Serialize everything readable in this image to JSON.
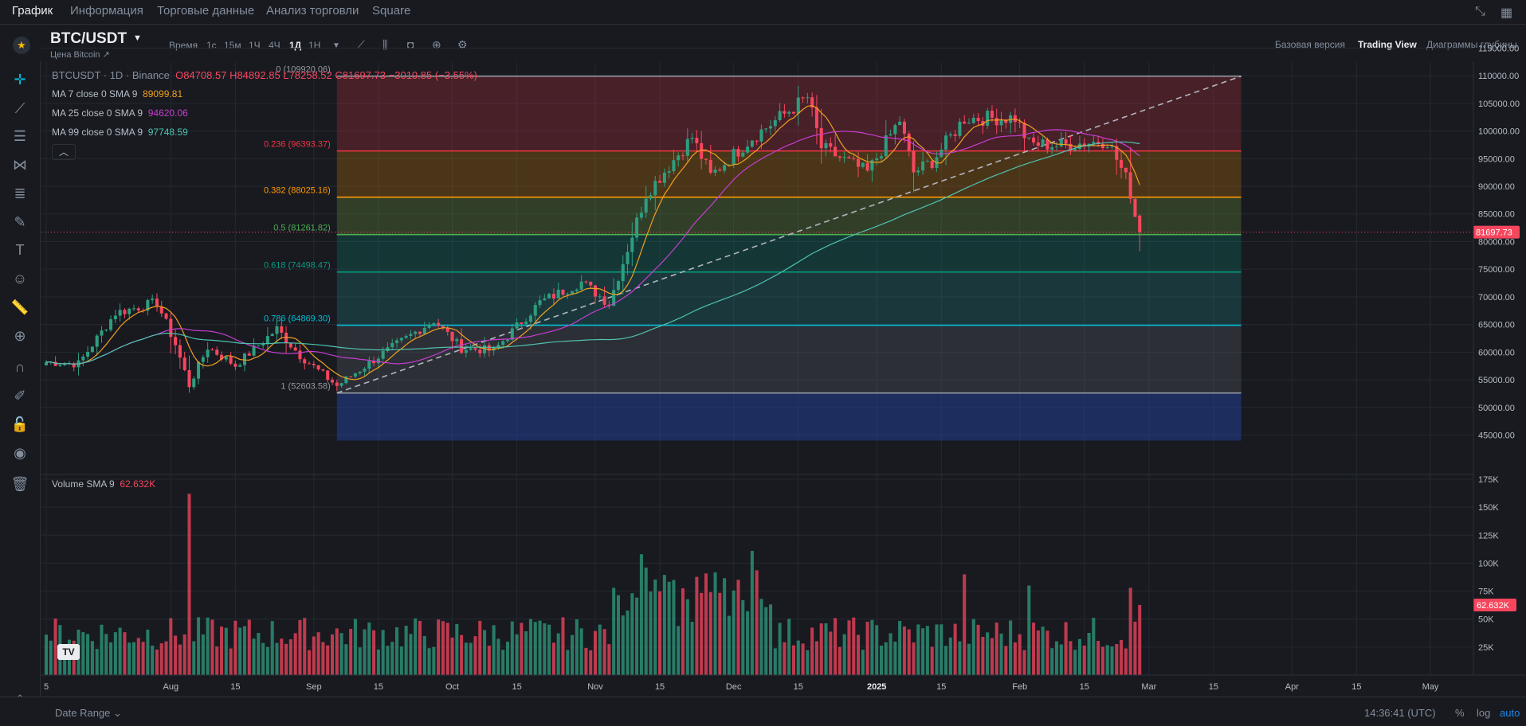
{
  "nav": {
    "tabs": [
      "График",
      "Информация",
      "Торговые данные",
      "Анализ торговли",
      "Square"
    ],
    "active_index": 0
  },
  "symbol": {
    "name": "BTC/USDT",
    "subtitle": "Цена Bitcoin ↗"
  },
  "toolbar": {
    "time_label": "Время",
    "intervals": [
      "1с",
      "15м",
      "1Ч",
      "4Ч",
      "1Д",
      "1Н"
    ],
    "active_interval": "1Д",
    "views": [
      "Базовая версия",
      "Trading View",
      "Диаграммы глубины"
    ],
    "active_view": "Trading View"
  },
  "legend": {
    "title": "BTCUSDT · 1D · Binance",
    "open": "O84708.57",
    "high": "H84892.85",
    "low": "L78258.52",
    "close": "C81697.73",
    "change": "−3010.85 (−3.55%)",
    "ma7_label": "MA 7 close 0 SMA 9",
    "ma7_value": "89099.81",
    "ma25_label": "MA 25 close 0 SMA 9",
    "ma25_value": "94620.06",
    "ma99_label": "MA 99 close 0 SMA 9",
    "ma99_value": "97748.59",
    "volume_label": "Volume SMA 9",
    "volume_value": "62.632K"
  },
  "footer": {
    "date_range": "Date Range ⌄",
    "clock": "14:36:41 (UTC)",
    "options": [
      "%",
      "log",
      "auto"
    ]
  },
  "colors": {
    "up": "#2e9d7f",
    "down": "#f6465d",
    "ma7": "#f0a020",
    "ma25": "#c73dd1",
    "ma99": "#4fc3b0",
    "accent": "#00b8d9"
  },
  "chart_data": {
    "type": "candlestick",
    "symbol": "BTCUSDT",
    "interval": "1D",
    "price_axis": {
      "ylim": [
        43000,
        116000
      ],
      "ticks": [
        45000,
        50000,
        55000,
        60000,
        65000,
        70000,
        75000,
        80000,
        85000,
        90000,
        95000,
        100000,
        105000,
        110000,
        115000
      ],
      "tick_labels": [
        "45000.00",
        "50000.00",
        "55000.00",
        "60000.00",
        "65000.00",
        "70000.00",
        "75000.00",
        "80000.00",
        "85000.00",
        "90000.00",
        "95000.00",
        "100000.00",
        "105000.00",
        "110000.00",
        "115000.00"
      ],
      "last_price": 81697.73,
      "last_price_label": "81697.73"
    },
    "volume_axis": {
      "ylim": [
        0,
        175000
      ],
      "ticks": [
        25000,
        50000,
        75000,
        100000,
        125000,
        150000,
        175000
      ],
      "tick_labels": [
        "25K",
        "50K",
        "75K",
        "100K",
        "125K",
        "150K",
        "175K"
      ],
      "last_value_label": "62.632K"
    },
    "time_axis": {
      "start": "2024-07-05",
      "end": "2025-05-20",
      "ticks": [
        {
          "date": "2024-07-05",
          "label": "5"
        },
        {
          "date": "2024-08-01",
          "label": "Aug"
        },
        {
          "date": "2024-08-15",
          "label": "15"
        },
        {
          "date": "2024-09-01",
          "label": "Sep"
        },
        {
          "date": "2024-09-15",
          "label": "15"
        },
        {
          "date": "2024-10-01",
          "label": "Oct"
        },
        {
          "date": "2024-10-15",
          "label": "15"
        },
        {
          "date": "2024-11-01",
          "label": "Nov"
        },
        {
          "date": "2024-11-15",
          "label": "15"
        },
        {
          "date": "2024-12-01",
          "label": "Dec"
        },
        {
          "date": "2024-12-15",
          "label": "15"
        },
        {
          "date": "2025-01-01",
          "label": "2025"
        },
        {
          "date": "2025-01-15",
          "label": "15"
        },
        {
          "date": "2025-02-01",
          "label": "Feb"
        },
        {
          "date": "2025-02-15",
          "label": "15"
        },
        {
          "date": "2025-03-01",
          "label": "Mar"
        },
        {
          "date": "2025-03-15",
          "label": "15"
        },
        {
          "date": "2025-04-01",
          "label": "Apr"
        },
        {
          "date": "2025-04-15",
          "label": "15"
        },
        {
          "date": "2025-05-01",
          "label": "May"
        }
      ]
    },
    "anchors": [
      [
        "2024-07-05",
        58200
      ],
      [
        "2024-07-12",
        57900
      ],
      [
        "2024-07-20",
        67100
      ],
      [
        "2024-07-29",
        69000
      ],
      [
        "2024-08-02",
        61400
      ],
      [
        "2024-08-05",
        54000
      ],
      [
        "2024-08-09",
        60900
      ],
      [
        "2024-08-15",
        57600
      ],
      [
        "2024-08-24",
        64200
      ],
      [
        "2024-08-29",
        59400
      ],
      [
        "2024-09-06",
        53900
      ],
      [
        "2024-09-15",
        59200
      ],
      [
        "2024-09-27",
        65800
      ],
      [
        "2024-10-03",
        60700
      ],
      [
        "2024-10-10",
        60300
      ],
      [
        "2024-10-20",
        69000
      ],
      [
        "2024-10-29",
        72700
      ],
      [
        "2024-11-04",
        68800
      ],
      [
        "2024-11-12",
        88600
      ],
      [
        "2024-11-22",
        98900
      ],
      [
        "2024-11-26",
        91900
      ],
      [
        "2024-12-05",
        98800
      ],
      [
        "2024-12-17",
        106100
      ],
      [
        "2024-12-20",
        97000
      ],
      [
        "2024-12-30",
        92500
      ],
      [
        "2025-01-06",
        102000
      ],
      [
        "2025-01-09",
        92500
      ],
      [
        "2025-01-13",
        94500
      ],
      [
        "2025-01-20",
        102300
      ],
      [
        "2025-01-31",
        102400
      ],
      [
        "2025-02-03",
        97700
      ],
      [
        "2025-02-10",
        97400
      ],
      [
        "2025-02-20",
        98300
      ],
      [
        "2025-02-24",
        91500
      ],
      [
        "2025-02-25",
        88700
      ],
      [
        "2025-02-26",
        84700
      ],
      [
        "2025-02-27",
        81698
      ]
    ],
    "volume_peaks": [
      [
        "2024-08-05",
        162000
      ],
      [
        "2024-11-11",
        108000
      ],
      [
        "2024-11-12",
        96000
      ],
      [
        "2024-12-05",
        111000
      ],
      [
        "2025-01-20",
        90000
      ],
      [
        "2025-02-03",
        80000
      ],
      [
        "2025-02-25",
        78000
      ],
      [
        "2025-02-27",
        62632
      ]
    ],
    "ma_lengths": [
      7,
      25,
      99
    ],
    "fibonacci": {
      "start_date": "2024-09-06",
      "end_date": "2025-03-21",
      "levels": [
        {
          "ratio": 0,
          "price": 109920.06,
          "label": "0 (109920.06)",
          "color": "#9598a1"
        },
        {
          "ratio": 0.236,
          "price": 96393.37,
          "label": "0.236 (96393.37)",
          "color": "#f23645"
        },
        {
          "ratio": 0.382,
          "price": 88025.16,
          "label": "0.382 (88025.16)",
          "color": "#ff9800"
        },
        {
          "ratio": 0.5,
          "price": 81261.82,
          "label": "0.5 (81261.82)",
          "color": "#4caf50"
        },
        {
          "ratio": 0.618,
          "price": 74498.47,
          "label": "0.618 (74498.47)",
          "color": "#089981"
        },
        {
          "ratio": 0.786,
          "price": 64869.3,
          "label": "0.786 (64869.30)",
          "color": "#00bcd4"
        },
        {
          "ratio": 1,
          "price": 52603.58,
          "label": "1 (52603.58)",
          "color": "#9598a1"
        }
      ],
      "extension_price": 44000
    },
    "trend_line": {
      "from": [
        "2024-09-06",
        52603.58
      ],
      "to": [
        "2025-03-21",
        109920.06
      ]
    }
  }
}
